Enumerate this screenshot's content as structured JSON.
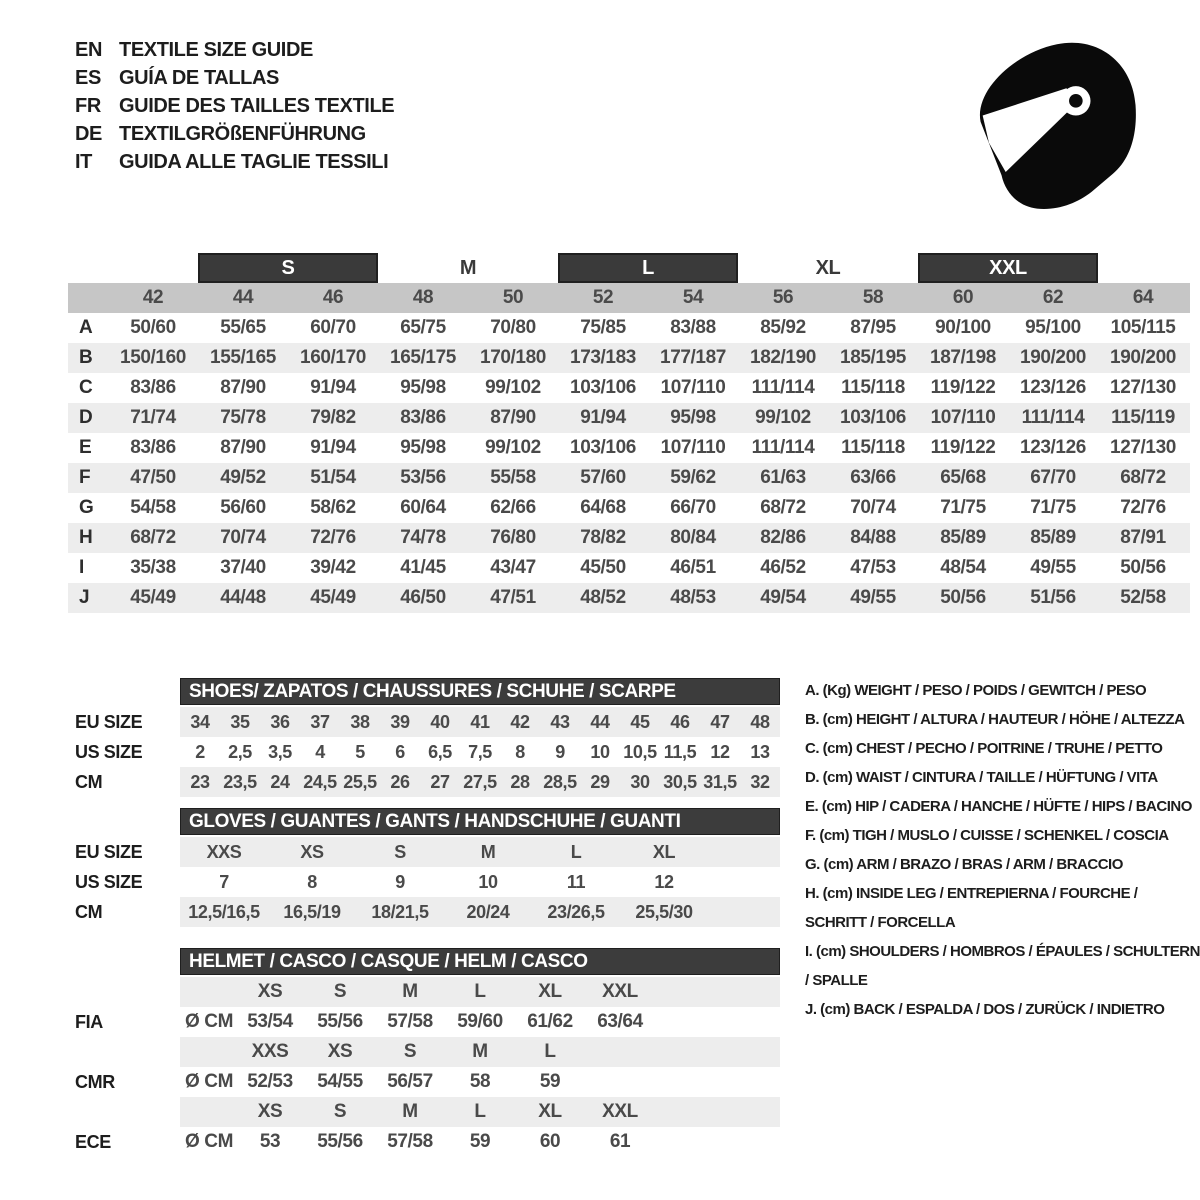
{
  "title_block": {
    "languages": [
      {
        "code": "EN",
        "title": "TEXTILE SIZE GUIDE"
      },
      {
        "code": "ES",
        "title": "GUÍA DE TALLAS"
      },
      {
        "code": "FR",
        "title": "GUIDE DES TAILLES TEXTILE"
      },
      {
        "code": "DE",
        "title": "TEXTILGRÖßENFÜHRUNG"
      },
      {
        "code": "IT",
        "title": "GUIDA ALLE TAGLIE TESSILI"
      }
    ],
    "icon": "racing-helmet-icon"
  },
  "colors": {
    "dark_bar": "#3c3c3c",
    "number_band": "#c6c6c6",
    "row_stripe": "#ededed",
    "icon_black": "#0a0a0a"
  },
  "main_table": {
    "size_groups": [
      {
        "label": "",
        "boxed": false
      },
      {
        "label": "S",
        "boxed": true
      },
      {
        "label": "M",
        "boxed": false
      },
      {
        "label": "L",
        "boxed": true
      },
      {
        "label": "XL",
        "boxed": false
      },
      {
        "label": "XXL",
        "boxed": true
      },
      {
        "label": "",
        "boxed": false
      }
    ],
    "columns": [
      "42",
      "44",
      "46",
      "48",
      "50",
      "52",
      "54",
      "56",
      "58",
      "60",
      "62",
      "64"
    ],
    "rows": [
      {
        "key": "A",
        "values": [
          "50/60",
          "55/65",
          "60/70",
          "65/75",
          "70/80",
          "75/85",
          "83/88",
          "85/92",
          "87/95",
          "90/100",
          "95/100",
          "105/115"
        ]
      },
      {
        "key": "B",
        "values": [
          "150/160",
          "155/165",
          "160/170",
          "165/175",
          "170/180",
          "173/183",
          "177/187",
          "182/190",
          "185/195",
          "187/198",
          "190/200",
          "190/200"
        ]
      },
      {
        "key": "C",
        "values": [
          "83/86",
          "87/90",
          "91/94",
          "95/98",
          "99/102",
          "103/106",
          "107/110",
          "111/114",
          "115/118",
          "119/122",
          "123/126",
          "127/130"
        ]
      },
      {
        "key": "D",
        "values": [
          "71/74",
          "75/78",
          "79/82",
          "83/86",
          "87/90",
          "91/94",
          "95/98",
          "99/102",
          "103/106",
          "107/110",
          "111/114",
          "115/119"
        ]
      },
      {
        "key": "E",
        "values": [
          "83/86",
          "87/90",
          "91/94",
          "95/98",
          "99/102",
          "103/106",
          "107/110",
          "111/114",
          "115/118",
          "119/122",
          "123/126",
          "127/130"
        ]
      },
      {
        "key": "F",
        "values": [
          "47/50",
          "49/52",
          "51/54",
          "53/56",
          "55/58",
          "57/60",
          "59/62",
          "61/63",
          "63/66",
          "65/68",
          "67/70",
          "68/72"
        ]
      },
      {
        "key": "G",
        "values": [
          "54/58",
          "56/60",
          "58/62",
          "60/64",
          "62/66",
          "64/68",
          "66/70",
          "68/72",
          "70/74",
          "71/75",
          "71/75",
          "72/76"
        ]
      },
      {
        "key": "H",
        "values": [
          "68/72",
          "70/74",
          "72/76",
          "74/78",
          "76/80",
          "78/82",
          "80/84",
          "82/86",
          "84/88",
          "85/89",
          "85/89",
          "87/91"
        ]
      },
      {
        "key": "I",
        "values": [
          "35/38",
          "37/40",
          "39/42",
          "41/45",
          "43/47",
          "45/50",
          "46/51",
          "46/52",
          "47/53",
          "48/54",
          "49/55",
          "50/56"
        ]
      },
      {
        "key": "J",
        "values": [
          "45/49",
          "44/48",
          "45/49",
          "46/50",
          "47/51",
          "48/52",
          "48/53",
          "49/54",
          "49/55",
          "50/56",
          "51/56",
          "52/58"
        ]
      }
    ]
  },
  "shoes": {
    "title": "SHOES/ ZAPATOS / CHAUSSURES / SCHUHE / SCARPE",
    "rows": [
      {
        "label": "EU SIZE",
        "values": [
          "34",
          "35",
          "36",
          "37",
          "38",
          "39",
          "40",
          "41",
          "42",
          "43",
          "44",
          "45",
          "46",
          "47",
          "48"
        ]
      },
      {
        "label": "US SIZE",
        "values": [
          "2",
          "2,5",
          "3,5",
          "4",
          "5",
          "6",
          "6,5",
          "7,5",
          "8",
          "9",
          "10",
          "10,5",
          "11,5",
          "12",
          "13"
        ]
      },
      {
        "label": "CM",
        "values": [
          "23",
          "23,5",
          "24",
          "24,5",
          "25,5",
          "26",
          "27",
          "27,5",
          "28",
          "28,5",
          "29",
          "30",
          "30,5",
          "31,5",
          "32"
        ]
      }
    ]
  },
  "gloves": {
    "title": "GLOVES / GUANTES / GANTS / HANDSCHUHE / GUANTI",
    "rows": [
      {
        "label": "EU SIZE",
        "values": [
          "XXS",
          "XS",
          "S",
          "M",
          "L",
          "XL"
        ]
      },
      {
        "label": "US SIZE",
        "values": [
          "7",
          "8",
          "9",
          "10",
          "11",
          "12"
        ]
      },
      {
        "label": "CM",
        "values": [
          "12,5/16,5",
          "16,5/19",
          "18/21,5",
          "20/24",
          "23/26,5",
          "25,5/30"
        ]
      }
    ]
  },
  "helmet": {
    "title": "HELMET / CASCO / CASQUE / HELM / CASCO",
    "sections": [
      {
        "label": "FIA",
        "unit": "Ø CM",
        "sizes": [
          "XS",
          "S",
          "M",
          "L",
          "XL",
          "XXL"
        ],
        "values": [
          "53/54",
          "55/56",
          "57/58",
          "59/60",
          "61/62",
          "63/64"
        ]
      },
      {
        "label": "CMR",
        "unit": "Ø CM",
        "sizes": [
          "XXS",
          "XS",
          "S",
          "M",
          "L",
          ""
        ],
        "values": [
          "52/53",
          "54/55",
          "56/57",
          "58",
          "59",
          ""
        ]
      },
      {
        "label": "ECE",
        "unit": "Ø CM",
        "sizes": [
          "XS",
          "S",
          "M",
          "L",
          "XL",
          "XXL"
        ],
        "values": [
          "53",
          "55/56",
          "57/58",
          "59",
          "60",
          "61"
        ]
      }
    ]
  },
  "legend": {
    "items": [
      "A. (Kg) WEIGHT / PESO / POIDS / GEWITCH / PESO",
      "B. (cm) HEIGHT / ALTURA / HAUTEUR / HÖHE / ALTEZZA",
      "C. (cm) CHEST / PECHO / POITRINE / TRUHE / PETTO",
      "D. (cm) WAIST / CINTURA / TAILLE / HÜFTUNG / VITA",
      "E. (cm) HIP / CADERA / HANCHE / HÜFTE / HIPS / BACINO",
      "F. (cm) TIGH / MUSLO / CUISSE / SCHENKEL / COSCIA",
      "G. (cm) ARM / BRAZO / BRAS / ARM / BRACCIO",
      "H. (cm) INSIDE LEG / ENTREPIERNA / FOURCHE / SCHRITT / FORCELLA",
      "I. (cm) SHOULDERS / HOMBROS / ÉPAULES / SCHULTERN / SPALLE",
      "J. (cm) BACK / ESPALDA / DOS / ZURÜCK / INDIETRO"
    ]
  }
}
